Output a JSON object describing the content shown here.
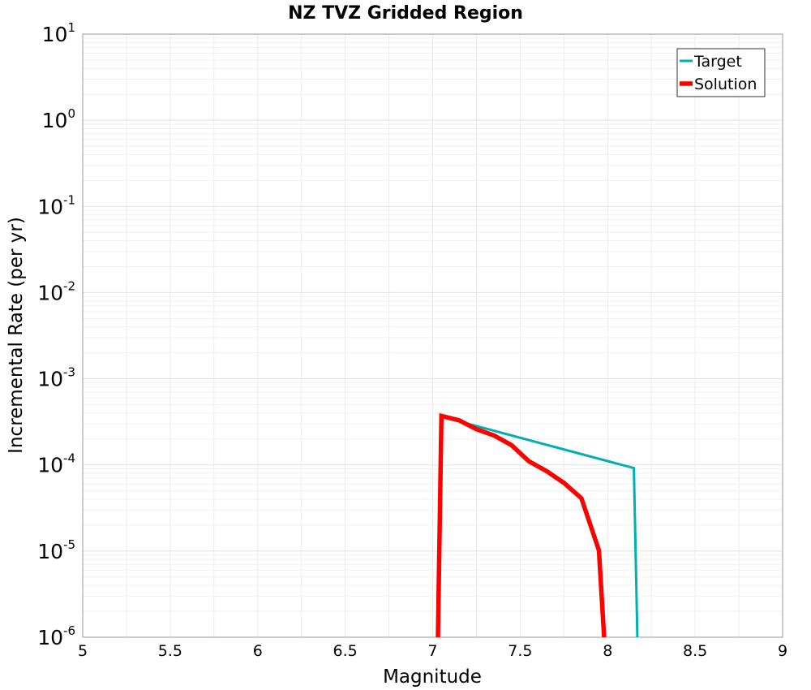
{
  "chart_data": {
    "type": "line",
    "title": "NZ TVZ Gridded Region",
    "xlabel": "Magnitude",
    "ylabel": "Incremental Rate (per yr)",
    "xlim": [
      5,
      9
    ],
    "ylim": [
      1e-06,
      10
    ],
    "yscale": "log",
    "x_ticks": [
      "5",
      "5.5",
      "6",
      "6.5",
      "7",
      "7.5",
      "8",
      "8.5",
      "9"
    ],
    "y_ticks": [
      {
        "base": "10",
        "exp": "-6",
        "value": 1e-06
      },
      {
        "base": "10",
        "exp": "-5",
        "value": 1e-05
      },
      {
        "base": "10",
        "exp": "-4",
        "value": 0.0001
      },
      {
        "base": "10",
        "exp": "-3",
        "value": 0.001
      },
      {
        "base": "10",
        "exp": "-2",
        "value": 0.01
      },
      {
        "base": "10",
        "exp": "-1",
        "value": 0.1
      },
      {
        "base": "10",
        "exp": "0",
        "value": 1
      },
      {
        "base": "10",
        "exp": "1",
        "value": 10
      }
    ],
    "grid": true,
    "legend_position": "top-right",
    "series": [
      {
        "name": "Target",
        "color": "#00b0b0",
        "x": [
          7.05,
          7.15,
          8.15,
          8.17
        ],
        "y": [
          0.00037,
          0.00032,
          9.2e-05,
          1e-06
        ]
      },
      {
        "name": "Solution",
        "color": "#ff0000",
        "x": [
          7.03,
          7.05,
          7.15,
          7.25,
          7.35,
          7.45,
          7.55,
          7.65,
          7.75,
          7.85,
          7.95,
          7.98
        ],
        "y": [
          1e-06,
          0.00037,
          0.00033,
          0.00026,
          0.00022,
          0.00017,
          0.00011,
          8.5e-05,
          6.2e-05,
          4.1e-05,
          1.02e-05,
          1e-06
        ]
      }
    ]
  }
}
